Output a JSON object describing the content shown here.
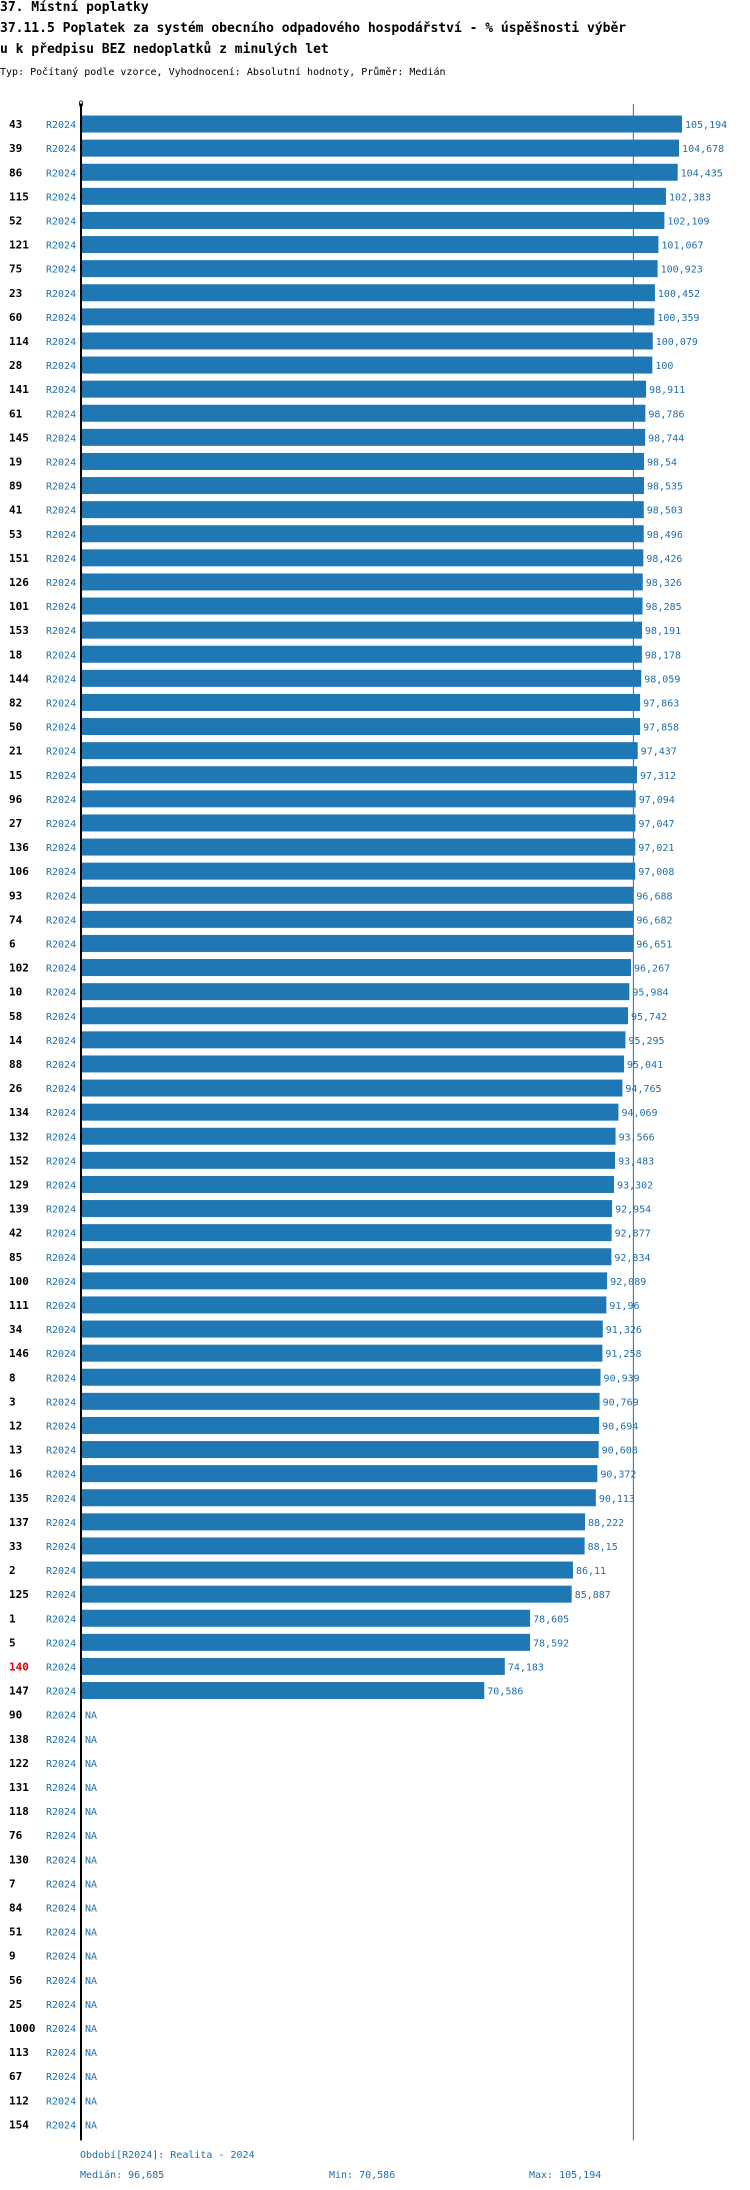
{
  "header": {
    "line1": "37. Místní poplatky",
    "line2": "37.11.5 Poplatek za systém obecního odpadového hospodářství  - % úspěšnosti výběr",
    "line3": "u k předpisu BEZ nedoplatků z minulých let",
    "subtitle": "Typ: Počítaný podle vzorce, Vyhodnocení: Absolutní hodnoty, Průměr: Medián"
  },
  "colors": {
    "bar": "#1f77b4",
    "label": "#1f6fa8",
    "highlight": "#e8000b",
    "axis": "#000000",
    "median_line": "#1f6fa8"
  },
  "chart_data": {
    "type": "bar",
    "orientation": "horizontal",
    "axis_zero_label": "0",
    "period_label": "R2024",
    "missing_label": "NA",
    "median": 96.685,
    "xlim": [
      0,
      105.194
    ],
    "highlight_category": "140",
    "rows": [
      {
        "id": "43",
        "value": 105.194,
        "label": "105,194"
      },
      {
        "id": "39",
        "value": 104.678,
        "label": "104,678"
      },
      {
        "id": "86",
        "value": 104.435,
        "label": "104,435"
      },
      {
        "id": "115",
        "value": 102.383,
        "label": "102,383"
      },
      {
        "id": "52",
        "value": 102.109,
        "label": "102,109"
      },
      {
        "id": "121",
        "value": 101.067,
        "label": "101,067"
      },
      {
        "id": "75",
        "value": 100.923,
        "label": "100,923"
      },
      {
        "id": "23",
        "value": 100.452,
        "label": "100,452"
      },
      {
        "id": "60",
        "value": 100.359,
        "label": "100,359"
      },
      {
        "id": "114",
        "value": 100.079,
        "label": "100,079"
      },
      {
        "id": "28",
        "value": 100,
        "label": "100"
      },
      {
        "id": "141",
        "value": 98.911,
        "label": "98,911"
      },
      {
        "id": "61",
        "value": 98.786,
        "label": "98,786"
      },
      {
        "id": "145",
        "value": 98.744,
        "label": "98,744"
      },
      {
        "id": "19",
        "value": 98.54,
        "label": "98,54"
      },
      {
        "id": "89",
        "value": 98.535,
        "label": "98,535"
      },
      {
        "id": "41",
        "value": 98.503,
        "label": "98,503"
      },
      {
        "id": "53",
        "value": 98.496,
        "label": "98,496"
      },
      {
        "id": "151",
        "value": 98.426,
        "label": "98,426"
      },
      {
        "id": "126",
        "value": 98.326,
        "label": "98,326"
      },
      {
        "id": "101",
        "value": 98.285,
        "label": "98,285"
      },
      {
        "id": "153",
        "value": 98.191,
        "label": "98,191"
      },
      {
        "id": "18",
        "value": 98.178,
        "label": "98,178"
      },
      {
        "id": "144",
        "value": 98.059,
        "label": "98,059"
      },
      {
        "id": "82",
        "value": 97.863,
        "label": "97,863"
      },
      {
        "id": "50",
        "value": 97.858,
        "label": "97,858"
      },
      {
        "id": "21",
        "value": 97.437,
        "label": "97,437"
      },
      {
        "id": "15",
        "value": 97.312,
        "label": "97,312"
      },
      {
        "id": "96",
        "value": 97.094,
        "label": "97,094"
      },
      {
        "id": "27",
        "value": 97.047,
        "label": "97,047"
      },
      {
        "id": "136",
        "value": 97.021,
        "label": "97,021"
      },
      {
        "id": "106",
        "value": 97.008,
        "label": "97,008"
      },
      {
        "id": "93",
        "value": 96.688,
        "label": "96,688"
      },
      {
        "id": "74",
        "value": 96.682,
        "label": "96,682"
      },
      {
        "id": "6",
        "value": 96.651,
        "label": "96,651"
      },
      {
        "id": "102",
        "value": 96.267,
        "label": "96,267"
      },
      {
        "id": "10",
        "value": 95.984,
        "label": "95,984"
      },
      {
        "id": "58",
        "value": 95.742,
        "label": "95,742"
      },
      {
        "id": "14",
        "value": 95.295,
        "label": "95,295"
      },
      {
        "id": "88",
        "value": 95.041,
        "label": "95,041"
      },
      {
        "id": "26",
        "value": 94.765,
        "label": "94,765"
      },
      {
        "id": "134",
        "value": 94.069,
        "label": "94,069"
      },
      {
        "id": "132",
        "value": 93.566,
        "label": "93,566"
      },
      {
        "id": "152",
        "value": 93.483,
        "label": "93,483"
      },
      {
        "id": "129",
        "value": 93.302,
        "label": "93,302"
      },
      {
        "id": "139",
        "value": 92.954,
        "label": "92,954"
      },
      {
        "id": "42",
        "value": 92.877,
        "label": "92,877"
      },
      {
        "id": "85",
        "value": 92.834,
        "label": "92,834"
      },
      {
        "id": "100",
        "value": 92.089,
        "label": "92,089"
      },
      {
        "id": "111",
        "value": 91.96,
        "label": "91,96"
      },
      {
        "id": "34",
        "value": 91.326,
        "label": "91,326"
      },
      {
        "id": "146",
        "value": 91.258,
        "label": "91,258"
      },
      {
        "id": "8",
        "value": 90.939,
        "label": "90,939"
      },
      {
        "id": "3",
        "value": 90.769,
        "label": "90,769"
      },
      {
        "id": "12",
        "value": 90.694,
        "label": "90,694"
      },
      {
        "id": "13",
        "value": 90.608,
        "label": "90,608"
      },
      {
        "id": "16",
        "value": 90.372,
        "label": "90,372"
      },
      {
        "id": "135",
        "value": 90.113,
        "label": "90,113"
      },
      {
        "id": "137",
        "value": 88.222,
        "label": "88,222"
      },
      {
        "id": "33",
        "value": 88.15,
        "label": "88,15"
      },
      {
        "id": "2",
        "value": 86.11,
        "label": "86,11"
      },
      {
        "id": "125",
        "value": 85.887,
        "label": "85,887"
      },
      {
        "id": "1",
        "value": 78.605,
        "label": "78,605"
      },
      {
        "id": "5",
        "value": 78.592,
        "label": "78,592"
      },
      {
        "id": "140",
        "value": 74.183,
        "label": "74,183"
      },
      {
        "id": "147",
        "value": 70.586,
        "label": "70,586"
      },
      {
        "id": "90",
        "value": null,
        "label": "NA"
      },
      {
        "id": "138",
        "value": null,
        "label": "NA"
      },
      {
        "id": "122",
        "value": null,
        "label": "NA"
      },
      {
        "id": "131",
        "value": null,
        "label": "NA"
      },
      {
        "id": "118",
        "value": null,
        "label": "NA"
      },
      {
        "id": "76",
        "value": null,
        "label": "NA"
      },
      {
        "id": "130",
        "value": null,
        "label": "NA"
      },
      {
        "id": "7",
        "value": null,
        "label": "NA"
      },
      {
        "id": "84",
        "value": null,
        "label": "NA"
      },
      {
        "id": "51",
        "value": null,
        "label": "NA"
      },
      {
        "id": "9",
        "value": null,
        "label": "NA"
      },
      {
        "id": "56",
        "value": null,
        "label": "NA"
      },
      {
        "id": "25",
        "value": null,
        "label": "NA"
      },
      {
        "id": "1000",
        "value": null,
        "label": "NA"
      },
      {
        "id": "113",
        "value": null,
        "label": "NA"
      },
      {
        "id": "67",
        "value": null,
        "label": "NA"
      },
      {
        "id": "112",
        "value": null,
        "label": "NA"
      },
      {
        "id": "154",
        "value": null,
        "label": "NA"
      }
    ]
  },
  "footer": {
    "period": "Období[R2024]: Realita - 2024",
    "median": "Medián: 96,685",
    "min": "Min: 70,586",
    "max": "Max: 105,194"
  }
}
